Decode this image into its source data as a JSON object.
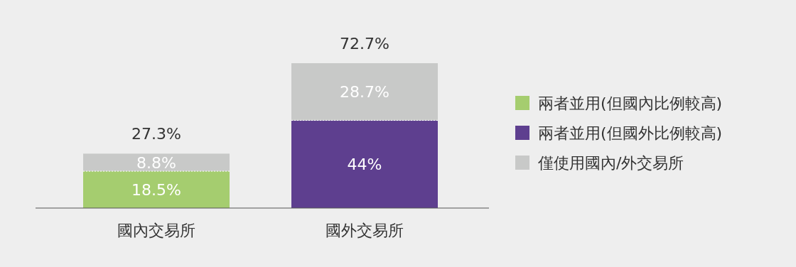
{
  "chart_data": {
    "type": "bar",
    "stacked": true,
    "categories": [
      "國內交易所",
      "國外交易所"
    ],
    "series": [
      {
        "name": "兩者並用(但國內比例較高)",
        "color": "#a5cd6f",
        "values": [
          18.5,
          null
        ],
        "value_labels": [
          "18.5%",
          null
        ]
      },
      {
        "name": "兩者並用(但國外比例較高)",
        "color": "#5e3f8f",
        "values": [
          null,
          44
        ],
        "value_labels": [
          null,
          "44%"
        ]
      },
      {
        "name": "僅使用國內/外交易所",
        "color": "#c8c9c8",
        "values": [
          8.8,
          28.7
        ],
        "value_labels": [
          "8.8%",
          "28.7%"
        ]
      }
    ],
    "totals": [
      "27.3%",
      "72.7%"
    ],
    "ylim": [
      0,
      72.7
    ],
    "legend": "right"
  }
}
